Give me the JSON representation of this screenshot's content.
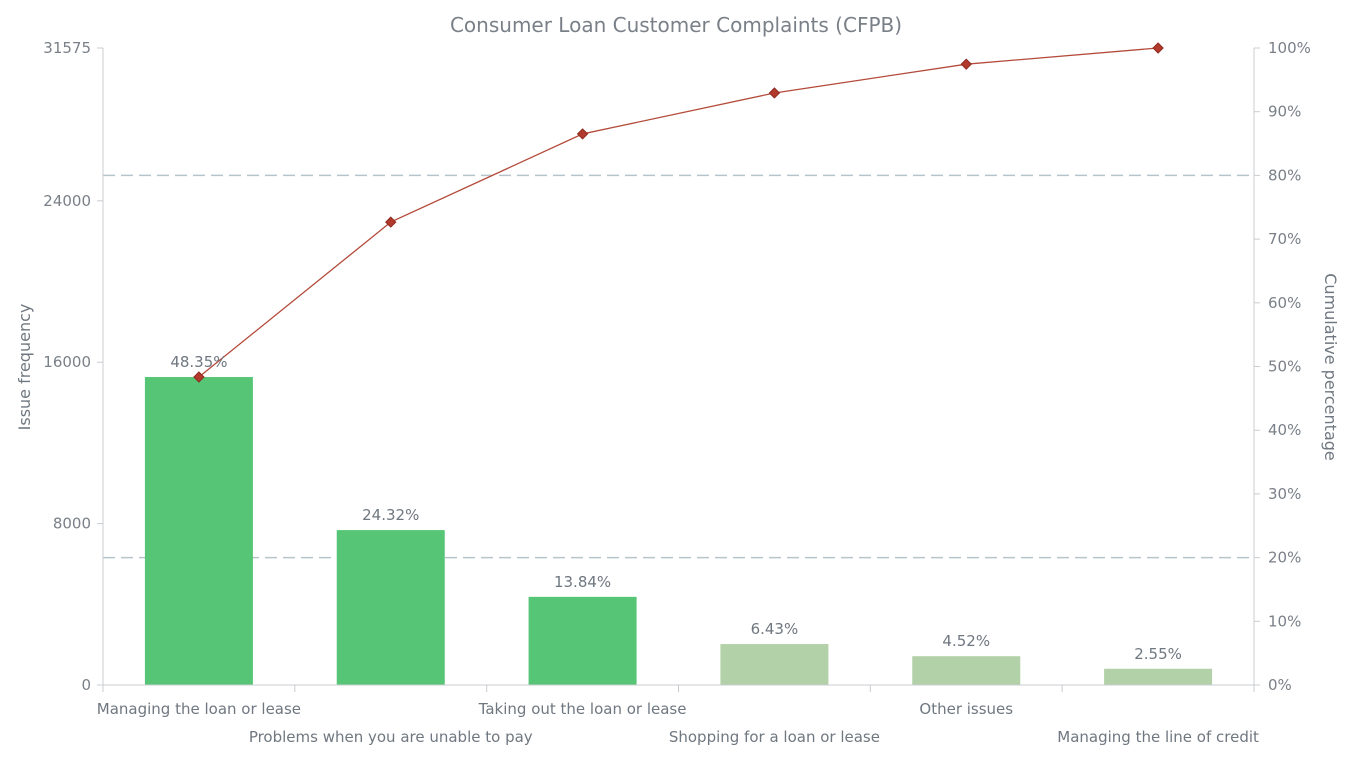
{
  "chart_data": {
    "type": "bar",
    "title": "Consumer Loan Customer Complaints (CFPB)",
    "ylabel": "Issue frequency",
    "y2label": "Cumulative percentage",
    "ylim": [
      0,
      31575
    ],
    "y2lim": [
      0,
      100
    ],
    "yticks": [
      "0",
      "8000",
      "16000",
      "24000",
      "31575"
    ],
    "y2ticks": [
      "0%",
      "10%",
      "20%",
      "30%",
      "40%",
      "50%",
      "60%",
      "70%",
      "80%",
      "90%",
      "100%"
    ],
    "reference_lines_percent": [
      20,
      80
    ],
    "categories": [
      "Managing the loan or lease",
      "Problems when you are unable to pay",
      "Taking out the loan or lease",
      "Shopping for a loan or lease",
      "Other issues",
      "Managing the line of credit"
    ],
    "values": [
      15266,
      7679,
      4370,
      2030,
      1427,
      805
    ],
    "percent_labels": [
      "48.35%",
      "24.32%",
      "13.84%",
      "6.43%",
      "4.52%",
      "2.55%"
    ],
    "cumulative_percent": [
      48.35,
      72.67,
      86.51,
      92.94,
      97.46,
      100
    ],
    "bar_colors": [
      "#57c576",
      "#57c576",
      "#57c576",
      "#b3d1a8",
      "#b3d1a8",
      "#b3d1a8"
    ],
    "line_color": "#b23a2c"
  }
}
